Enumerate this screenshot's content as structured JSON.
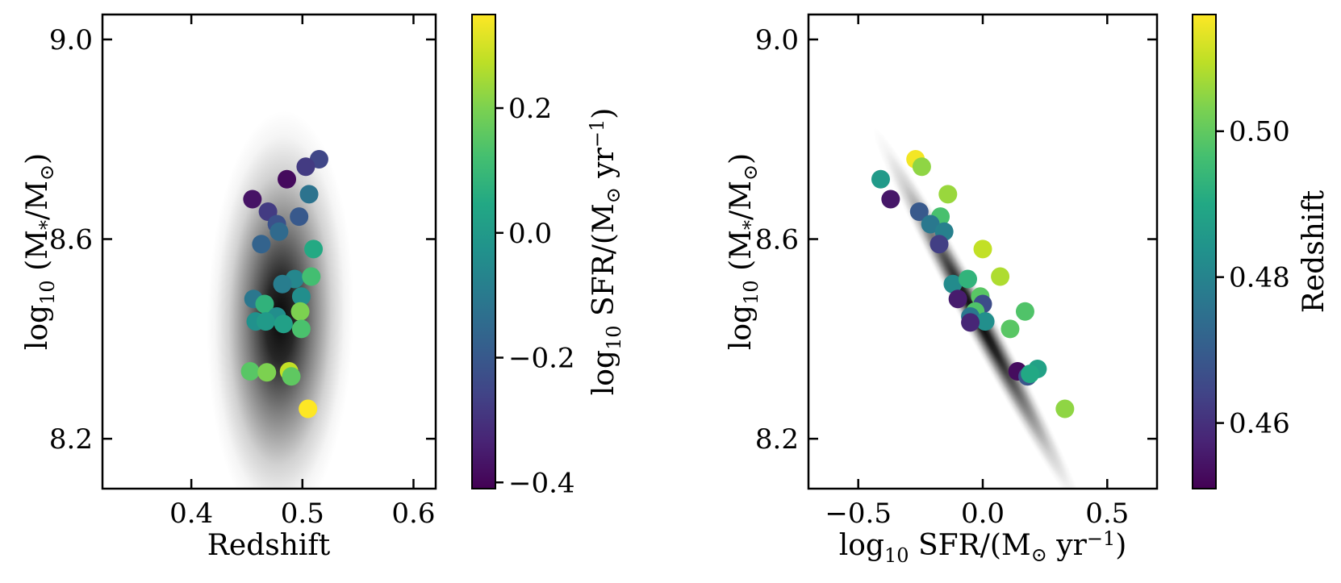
{
  "chart_data": [
    {
      "type": "scatter",
      "panel": "left",
      "xlabel": "Redshift",
      "ylabel": {
        "log": "log",
        "sub": "10",
        "mid": " (M",
        "subm": "*",
        "slash": "/M",
        "subsun": "⊙",
        "close": ")"
      },
      "xlim": [
        0.32,
        0.62
      ],
      "ylim": [
        8.1,
        9.05
      ],
      "xticks": [
        0.4,
        0.5,
        0.6
      ],
      "xtick_labels": [
        "0.4",
        "0.5",
        "0.6"
      ],
      "yticks": [
        8.2,
        8.6,
        9.0
      ],
      "ytick_labels": [
        "8.2",
        "8.6",
        "9.0"
      ],
      "color_by": "log10 SFR",
      "colorbar": {
        "label": {
          "log": "log",
          "sub": "10",
          "rest": " SFR/(M",
          "subsun": "⊙",
          "unit": " yr",
          "sup": "−1",
          "close": ")"
        },
        "range": [
          -0.41,
          0.35
        ],
        "ticks": [
          -0.4,
          -0.2,
          0.0,
          0.2
        ],
        "tick_labels": [
          "−0.4",
          "−0.2",
          "0.0",
          "0.2"
        ]
      },
      "density": {
        "center_x": 0.48,
        "center_y": 8.44,
        "sigma_x": 0.022,
        "sigma_y": 0.22,
        "slope": 0.08
      },
      "points": [
        {
          "x": 0.515,
          "y": 8.76,
          "c": -0.25
        },
        {
          "x": 0.503,
          "y": 8.745,
          "c": -0.28
        },
        {
          "x": 0.486,
          "y": 8.72,
          "c": -0.39
        },
        {
          "x": 0.506,
          "y": 8.69,
          "c": -0.12
        },
        {
          "x": 0.455,
          "y": 8.68,
          "c": -0.37
        },
        {
          "x": 0.469,
          "y": 8.655,
          "c": -0.28
        },
        {
          "x": 0.497,
          "y": 8.645,
          "c": -0.2
        },
        {
          "x": 0.477,
          "y": 8.63,
          "c": -0.22
        },
        {
          "x": 0.479,
          "y": 8.615,
          "c": -0.15
        },
        {
          "x": 0.463,
          "y": 8.59,
          "c": -0.17
        },
        {
          "x": 0.51,
          "y": 8.58,
          "c": 0.05
        },
        {
          "x": 0.493,
          "y": 8.52,
          "c": -0.06
        },
        {
          "x": 0.508,
          "y": 8.525,
          "c": 0.12
        },
        {
          "x": 0.482,
          "y": 8.51,
          "c": -0.09
        },
        {
          "x": 0.499,
          "y": 8.485,
          "c": -0.04
        },
        {
          "x": 0.456,
          "y": 8.48,
          "c": -0.11
        },
        {
          "x": 0.466,
          "y": 8.47,
          "c": 0.08
        },
        {
          "x": 0.498,
          "y": 8.455,
          "c": 0.2
        },
        {
          "x": 0.477,
          "y": 8.445,
          "c": -0.04
        },
        {
          "x": 0.458,
          "y": 8.435,
          "c": -0.03
        },
        {
          "x": 0.467,
          "y": 8.435,
          "c": 0.0
        },
        {
          "x": 0.483,
          "y": 8.43,
          "c": 0.02
        },
        {
          "x": 0.499,
          "y": 8.42,
          "c": 0.13
        },
        {
          "x": 0.453,
          "y": 8.335,
          "c": 0.15
        },
        {
          "x": 0.468,
          "y": 8.333,
          "c": 0.2
        },
        {
          "x": 0.488,
          "y": 8.335,
          "c": 0.28
        },
        {
          "x": 0.49,
          "y": 8.325,
          "c": 0.16
        },
        {
          "x": 0.505,
          "y": 8.26,
          "c": 0.35
        }
      ]
    },
    {
      "type": "scatter",
      "panel": "right",
      "xlabel": {
        "log": "log",
        "sub": "10",
        "rest": " SFR/(M",
        "subsun": "⊙",
        "unit": " yr",
        "sup": "−1",
        "close": ")"
      },
      "ylabel": {
        "log": "log",
        "sub": "10",
        "mid": " (M",
        "subm": "*",
        "slash": "/M",
        "subsun": "⊙",
        "close": ")"
      },
      "xlim": [
        -0.7,
        0.7
      ],
      "ylim": [
        8.1,
        9.05
      ],
      "xticks": [
        -0.5,
        0.0,
        0.5
      ],
      "xtick_labels": [
        "−0.5",
        "0.0",
        "0.5"
      ],
      "yticks": [
        8.2,
        8.6,
        9.0
      ],
      "ytick_labels": [
        "8.2",
        "8.6",
        "9.0"
      ],
      "color_by": "Redshift",
      "colorbar": {
        "label": "Redshift",
        "range": [
          0.451,
          0.516
        ],
        "ticks": [
          0.46,
          0.48,
          0.5
        ],
        "tick_labels": [
          "0.46",
          "0.48",
          "0.50"
        ]
      },
      "density": {
        "center_x": -0.02,
        "center_y": 8.44,
        "sigma_along": 0.58,
        "sigma_perp": 0.055,
        "slope_dy_dx": -0.92
      },
      "points": [
        {
          "x": -0.27,
          "y": 8.76,
          "c": 0.515
        },
        {
          "x": -0.245,
          "y": 8.745,
          "c": 0.505
        },
        {
          "x": -0.41,
          "y": 8.72,
          "c": 0.486
        },
        {
          "x": -0.14,
          "y": 8.69,
          "c": 0.506
        },
        {
          "x": -0.37,
          "y": 8.68,
          "c": 0.455
        },
        {
          "x": -0.255,
          "y": 8.655,
          "c": 0.469
        },
        {
          "x": -0.17,
          "y": 8.645,
          "c": 0.497
        },
        {
          "x": -0.21,
          "y": 8.63,
          "c": 0.477
        },
        {
          "x": -0.155,
          "y": 8.615,
          "c": 0.479
        },
        {
          "x": -0.175,
          "y": 8.59,
          "c": 0.463
        },
        {
          "x": 0.0,
          "y": 8.58,
          "c": 0.51
        },
        {
          "x": -0.12,
          "y": 8.51,
          "c": 0.482
        },
        {
          "x": -0.06,
          "y": 8.52,
          "c": 0.493
        },
        {
          "x": 0.07,
          "y": 8.525,
          "c": 0.508
        },
        {
          "x": -0.01,
          "y": 8.485,
          "c": 0.499
        },
        {
          "x": -0.1,
          "y": 8.48,
          "c": 0.456
        },
        {
          "x": 0.0,
          "y": 8.47,
          "c": 0.466
        },
        {
          "x": -0.03,
          "y": 8.455,
          "c": 0.498
        },
        {
          "x": -0.05,
          "y": 8.445,
          "c": 0.477
        },
        {
          "x": 0.01,
          "y": 8.435,
          "c": 0.483
        },
        {
          "x": -0.05,
          "y": 8.433,
          "c": 0.458
        },
        {
          "x": 0.11,
          "y": 8.42,
          "c": 0.499
        },
        {
          "x": 0.17,
          "y": 8.455,
          "c": 0.498
        },
        {
          "x": 0.14,
          "y": 8.335,
          "c": 0.453
        },
        {
          "x": 0.22,
          "y": 8.34,
          "c": 0.488
        },
        {
          "x": 0.18,
          "y": 8.325,
          "c": 0.468
        },
        {
          "x": 0.19,
          "y": 8.33,
          "c": 0.49
        },
        {
          "x": 0.33,
          "y": 8.26,
          "c": 0.505
        }
      ]
    }
  ]
}
